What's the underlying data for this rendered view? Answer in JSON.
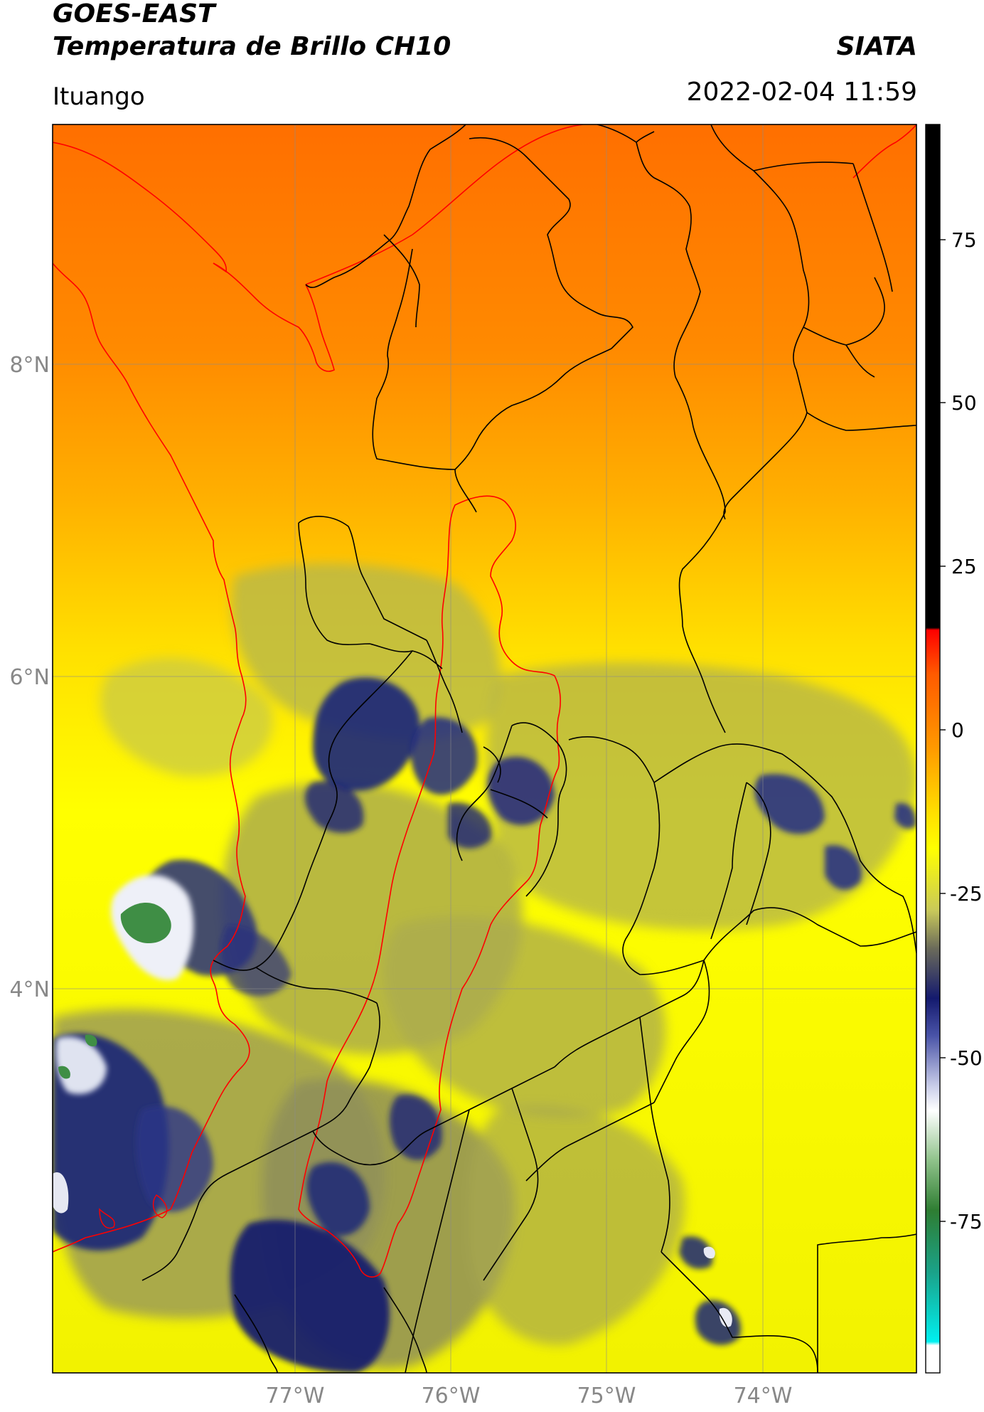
{
  "header": {
    "satellite": "GOES-EAST",
    "product": "Temperatura de Brillo CH10",
    "organization": "SIATA",
    "location": "Ituango",
    "timestamp": "2022-02-04 11:59"
  },
  "map": {
    "lat_labels": [
      "8°N",
      "6°N",
      "4°N"
    ],
    "lon_labels": [
      "77°W",
      "76°W",
      "75°W",
      "74°W"
    ]
  },
  "colorbar": {
    "tick_labels": [
      "75",
      "50",
      "25",
      "0",
      "-25",
      "-50",
      "-75"
    ],
    "colors": {
      "hot": "#000000",
      "red": "#ff0000",
      "orange": "#ff7a00",
      "yellow": "#ffff00",
      "olive": "#b4b45a",
      "navy": "#1a237e",
      "white": "#ffffff",
      "green": "#2e8b3a",
      "cyan": "#00e5e5"
    }
  }
}
